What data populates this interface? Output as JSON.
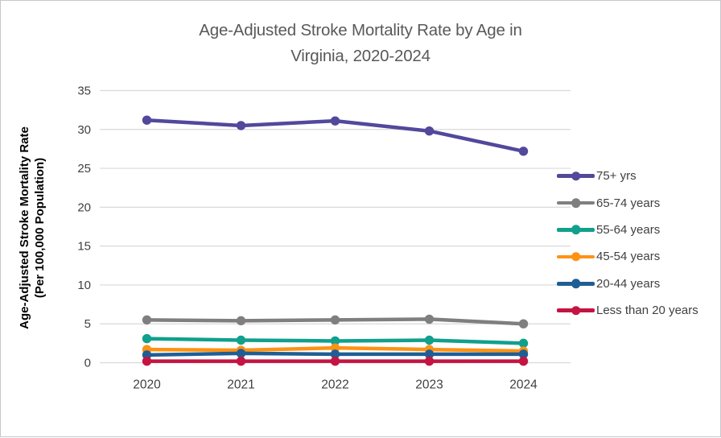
{
  "chart_data": {
    "type": "line",
    "title": "Age-Adjusted Stroke Mortality Rate by Age in Virginia, 2020-2024",
    "title_lines": [
      "Age-Adjusted Stroke Mortality Rate by Age in",
      "Virginia, 2020-2024"
    ],
    "xlabel": "",
    "ylabel": "Age-Adjusted Stroke Mortality Rate (Per 100,000 Population)",
    "ylabel_lines": [
      "Age-Adjusted Stroke Mortality Rate",
      "(Per 100,000 Population)"
    ],
    "categories": [
      "2020",
      "2021",
      "2022",
      "2023",
      "2024"
    ],
    "yticks": [
      0,
      5,
      10,
      15,
      20,
      25,
      30,
      35
    ],
    "ylim": [
      0,
      35
    ],
    "grid": "horizontal",
    "legend_position": "right",
    "series": [
      {
        "name": "75+ yrs",
        "color": "#52489C",
        "values": [
          31.2,
          30.5,
          31.1,
          29.8,
          27.2
        ]
      },
      {
        "name": "65-74 years",
        "color": "#7F7F7F",
        "values": [
          5.5,
          5.4,
          5.5,
          5.6,
          5.0
        ]
      },
      {
        "name": "55-64 years",
        "color": "#10A08C",
        "values": [
          3.1,
          2.9,
          2.8,
          2.9,
          2.5
        ]
      },
      {
        "name": "45-54 years",
        "color": "#FD9213",
        "values": [
          1.7,
          1.6,
          1.9,
          1.7,
          1.5
        ]
      },
      {
        "name": "20-44 years",
        "color": "#1F5E95",
        "values": [
          1.0,
          1.2,
          1.1,
          1.1,
          1.1
        ]
      },
      {
        "name": "Less than 20 years",
        "color": "#C41442",
        "values": [
          0.2,
          0.2,
          0.2,
          0.2,
          0.2
        ]
      }
    ]
  },
  "ui_colors": {
    "gridline": "#D9D9D9",
    "title_text": "#595959",
    "tick_text": "#404040",
    "legend_text": "#404040",
    "frame_border": "#C4C9CD"
  }
}
